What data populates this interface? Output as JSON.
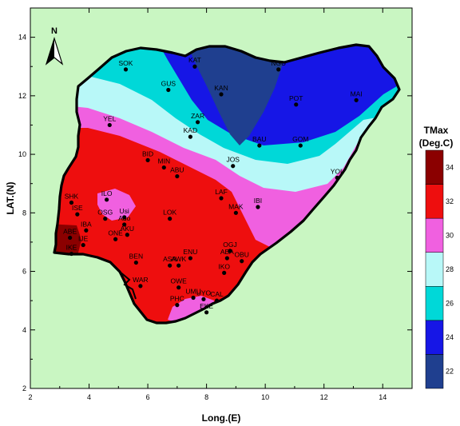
{
  "chart_data": {
    "type": "contour_map",
    "x_axis": {
      "title": "Long.(E)",
      "range": [
        2,
        15
      ],
      "ticks": [
        "2",
        "4",
        "6",
        "8",
        "10",
        "12",
        "14"
      ]
    },
    "y_axis": {
      "title": "LAT.(N)",
      "range": [
        2,
        15
      ],
      "ticks": [
        "2",
        "4",
        "6",
        "8",
        "10",
        "12",
        "14"
      ]
    },
    "north_arrow": {
      "label": "N"
    },
    "legend": {
      "title_line1": "TMax",
      "title_line2": "(Deg.C)",
      "levels": [
        "22",
        "24",
        "26",
        "28",
        "30",
        "32",
        "34"
      ],
      "colors": [
        "#1f3f8f",
        "#1616e6",
        "#00d8d8",
        "#b8f8f8",
        "#f060e0",
        "#ee0e0e",
        "#8b0000"
      ]
    },
    "stations": [
      {
        "name": "SOK",
        "lon": 5.25,
        "lat": 12.9
      },
      {
        "name": "KAT",
        "lon": 7.6,
        "lat": 13.0
      },
      {
        "name": "NGU",
        "lon": 10.45,
        "lat": 12.9
      },
      {
        "name": "GUS",
        "lon": 6.7,
        "lat": 12.2
      },
      {
        "name": "KAN",
        "lon": 8.5,
        "lat": 12.05
      },
      {
        "name": "POT",
        "lon": 11.05,
        "lat": 11.7
      },
      {
        "name": "MAI",
        "lon": 13.1,
        "lat": 11.85
      },
      {
        "name": "YEL",
        "lon": 4.7,
        "lat": 11.0
      },
      {
        "name": "ZAR",
        "lon": 7.7,
        "lat": 11.1
      },
      {
        "name": "KAD",
        "lon": 7.45,
        "lat": 10.6
      },
      {
        "name": "BAU",
        "lon": 9.8,
        "lat": 10.3
      },
      {
        "name": "GOM",
        "lon": 11.2,
        "lat": 10.3
      },
      {
        "name": "BID",
        "lon": 6.0,
        "lat": 9.8
      },
      {
        "name": "MIN",
        "lon": 6.55,
        "lat": 9.55
      },
      {
        "name": "ABU",
        "lon": 7.0,
        "lat": 9.25
      },
      {
        "name": "JOS",
        "lon": 8.9,
        "lat": 9.6
      },
      {
        "name": "YOL",
        "lon": 12.45,
        "lat": 9.2
      },
      {
        "name": "SHK",
        "lon": 3.4,
        "lat": 8.35
      },
      {
        "name": "ILO",
        "lon": 4.6,
        "lat": 8.45
      },
      {
        "name": "LAF",
        "lon": 8.5,
        "lat": 8.5
      },
      {
        "name": "IBI",
        "lon": 9.75,
        "lat": 8.2
      },
      {
        "name": "ISE",
        "lon": 3.6,
        "lat": 7.95
      },
      {
        "name": "OSG",
        "lon": 4.55,
        "lat": 7.8
      },
      {
        "name": "Usi",
        "lon": 5.2,
        "lat": 7.85
      },
      {
        "name": "LOK",
        "lon": 6.75,
        "lat": 7.8
      },
      {
        "name": "MAK",
        "lon": 9.0,
        "lat": 8.0
      },
      {
        "name": "IBA",
        "lon": 3.9,
        "lat": 7.4
      },
      {
        "name": "Ado",
        "lon": 5.2,
        "lat": 7.6
      },
      {
        "name": "AKU",
        "lon": 5.3,
        "lat": 7.25
      },
      {
        "name": "ABE",
        "lon": 3.35,
        "lat": 7.15
      },
      {
        "name": "IJE",
        "lon": 3.8,
        "lat": 6.9
      },
      {
        "name": "ONE",
        "lon": 4.9,
        "lat": 7.1
      },
      {
        "name": "IKE",
        "lon": 3.4,
        "lat": 6.6
      },
      {
        "name": "OGJ",
        "lon": 8.8,
        "lat": 6.7
      },
      {
        "name": "BEN",
        "lon": 5.6,
        "lat": 6.3
      },
      {
        "name": "ENU",
        "lon": 7.45,
        "lat": 6.45
      },
      {
        "name": "ASA",
        "lon": 6.75,
        "lat": 6.2
      },
      {
        "name": "AWK",
        "lon": 7.05,
        "lat": 6.2
      },
      {
        "name": "ABA",
        "lon": 8.7,
        "lat": 6.45
      },
      {
        "name": "OBU",
        "lon": 9.2,
        "lat": 6.35
      },
      {
        "name": "IKO",
        "lon": 8.6,
        "lat": 5.95
      },
      {
        "name": "WAR",
        "lon": 5.75,
        "lat": 5.5
      },
      {
        "name": "OWE",
        "lon": 7.05,
        "lat": 5.45
      },
      {
        "name": "UMU",
        "lon": 7.55,
        "lat": 5.1
      },
      {
        "name": "UYO",
        "lon": 7.9,
        "lat": 5.05
      },
      {
        "name": "PHC",
        "lon": 7.0,
        "lat": 4.85
      },
      {
        "name": "CAL",
        "lon": 8.35,
        "lat": 5.0
      },
      {
        "name": "EKE",
        "lon": 8.0,
        "lat": 4.6
      }
    ]
  }
}
